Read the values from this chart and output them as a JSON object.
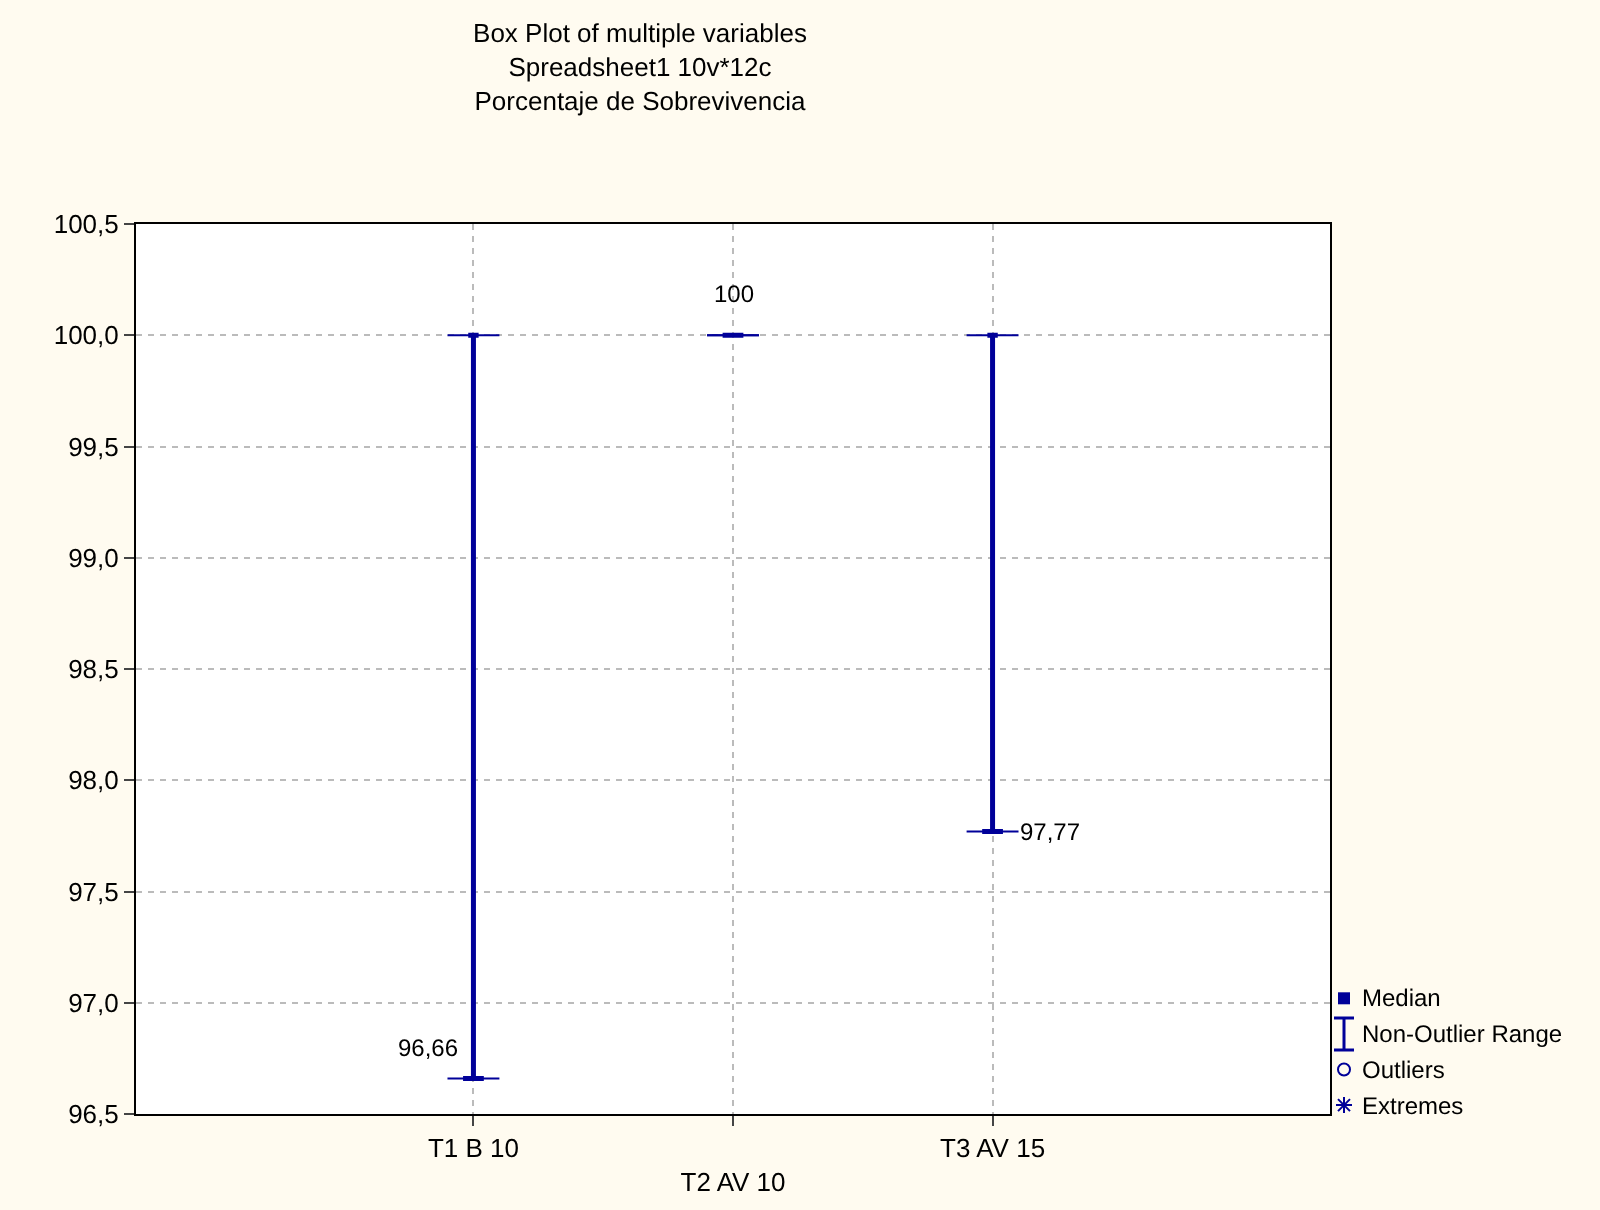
{
  "chart_data": {
    "type": "box",
    "title": "Box Plot of multiple variables",
    "subtitle": "Spreadsheet1 10v*12c",
    "ylabel": "Porcentaje de Sobrevivencia",
    "categories": [
      "T1 B 10",
      "T2 AV 10",
      "T3 AV 15"
    ],
    "boxes": [
      {
        "low": 96.66,
        "q1": 96.66,
        "median": 96.66,
        "q3": 96.66,
        "high": 100
      },
      {
        "low": 100,
        "q1": 100,
        "median": 100,
        "q3": 100,
        "high": 100
      },
      {
        "low": 97.77,
        "q1": 97.77,
        "median": 97.77,
        "q3": 97.77,
        "high": 100
      }
    ],
    "value_labels": [
      "96,66",
      "100",
      "97,77"
    ],
    "color": "#000099",
    "ylim": [
      96.5,
      100.5
    ],
    "yticks": [
      {
        "value": 96.5,
        "label": "96,5"
      },
      {
        "value": 97,
        "label": "97,0"
      },
      {
        "value": 97.5,
        "label": "97,5"
      },
      {
        "value": 98,
        "label": "98,0"
      },
      {
        "value": 98.5,
        "label": "98,5"
      },
      {
        "value": 99,
        "label": "99,0"
      },
      {
        "value": 99.5,
        "label": "99,5"
      },
      {
        "value": 100,
        "label": "100,0"
      },
      {
        "value": 100.5,
        "label": "100,5"
      }
    ],
    "grid": true,
    "annotations": [
      "Median",
      "Non-Outlier Range",
      "Outliers",
      "Extremes"
    ]
  }
}
